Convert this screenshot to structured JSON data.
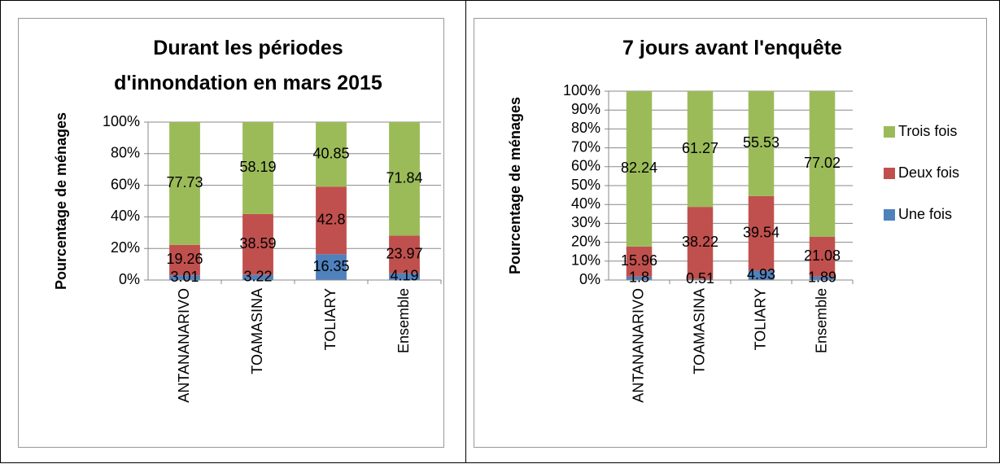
{
  "chart_data": [
    {
      "type": "bar",
      "stacked": true,
      "title": "Durant les périodes d'innondation en mars 2015",
      "ylabel": "Pourcentage de ménages",
      "categories": [
        "ANTANANARIVO",
        "TOAMASINA",
        "TOLIARY",
        "Ensemble"
      ],
      "series": [
        {
          "color": "#4f81bd",
          "values": [
            3.01,
            3.22,
            16.35,
            4.19
          ]
        },
        {
          "color": "#c0504d",
          "values": [
            19.26,
            38.59,
            42.8,
            23.97
          ]
        },
        {
          "color": "#9bbb59",
          "values": [
            77.73,
            58.19,
            40.85,
            71.84
          ]
        }
      ],
      "ylim": [
        0,
        100
      ],
      "yticks": [
        {
          "value": 0,
          "label": "0%"
        },
        {
          "value": 20,
          "label": "20%"
        },
        {
          "value": 40,
          "label": "40%"
        },
        {
          "value": 60,
          "label": "60%"
        },
        {
          "value": 80,
          "label": "80%"
        },
        {
          "value": 100,
          "label": "100%"
        }
      ],
      "grid": true
    },
    {
      "type": "bar",
      "stacked": true,
      "title": "7 jours avant l'enquête",
      "ylabel": "Pourcentage de ménages",
      "categories": [
        "ANTANANARIVO",
        "TOAMASINA",
        "TOLIARY",
        "Ensemble"
      ],
      "series": [
        {
          "name": "Une fois",
          "color": "#4f81bd",
          "values": [
            1.8,
            0.51,
            4.93,
            1.89
          ]
        },
        {
          "name": "Deux fois",
          "color": "#c0504d",
          "values": [
            15.96,
            38.22,
            39.54,
            21.08
          ]
        },
        {
          "name": "Trois fois",
          "color": "#9bbb59",
          "values": [
            82.24,
            61.27,
            55.53,
            77.02
          ]
        }
      ],
      "ylim": [
        0,
        100
      ],
      "yticks": [
        {
          "value": 0,
          "label": "0%"
        },
        {
          "value": 10,
          "label": "10%"
        },
        {
          "value": 20,
          "label": "20%"
        },
        {
          "value": 30,
          "label": "30%"
        },
        {
          "value": 40,
          "label": "40%"
        },
        {
          "value": 50,
          "label": "50%"
        },
        {
          "value": 60,
          "label": "60%"
        },
        {
          "value": 70,
          "label": "70%"
        },
        {
          "value": 80,
          "label": "80%"
        },
        {
          "value": 90,
          "label": "90%"
        },
        {
          "value": 100,
          "label": "100%"
        }
      ],
      "grid": true,
      "legend": "right"
    }
  ]
}
